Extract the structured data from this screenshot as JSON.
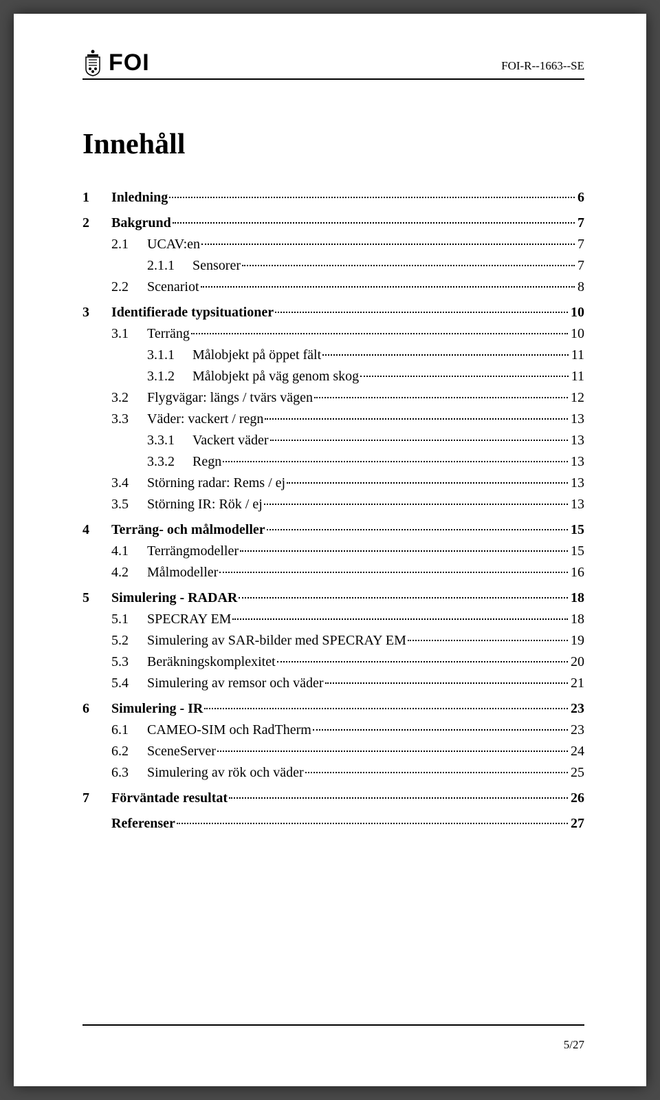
{
  "header": {
    "logo_text": "FOI",
    "report_id": "FOI-R--1663--SE"
  },
  "title": "Innehåll",
  "toc": [
    {
      "level": 1,
      "num": "1",
      "label": "Inledning",
      "page": "6"
    },
    {
      "level": 1,
      "num": "2",
      "label": "Bakgrund",
      "page": "7"
    },
    {
      "level": 2,
      "num": "2.1",
      "label": "UCAV:en",
      "page": "7"
    },
    {
      "level": 3,
      "num": "2.1.1",
      "label": "Sensorer",
      "page": "7"
    },
    {
      "level": 2,
      "num": "2.2",
      "label": "Scenariot",
      "page": "8"
    },
    {
      "level": 1,
      "num": "3",
      "label": "Identifierade typsituationer",
      "page": "10"
    },
    {
      "level": 2,
      "num": "3.1",
      "label": "Terräng",
      "page": "10"
    },
    {
      "level": 3,
      "num": "3.1.1",
      "label": "Målobjekt på öppet fält",
      "page": "11"
    },
    {
      "level": 3,
      "num": "3.1.2",
      "label": "Målobjekt på väg genom skog",
      "page": "11"
    },
    {
      "level": 2,
      "num": "3.2",
      "label": "Flygvägar: längs / tvärs vägen",
      "page": "12"
    },
    {
      "level": 2,
      "num": "3.3",
      "label": "Väder: vackert / regn",
      "page": "13"
    },
    {
      "level": 3,
      "num": "3.3.1",
      "label": "Vackert väder",
      "page": "13"
    },
    {
      "level": 3,
      "num": "3.3.2",
      "label": "Regn",
      "page": "13"
    },
    {
      "level": 2,
      "num": "3.4",
      "label": "Störning radar: Rems / ej",
      "page": "13"
    },
    {
      "level": 2,
      "num": "3.5",
      "label": "Störning IR: Rök / ej",
      "page": "13"
    },
    {
      "level": 1,
      "num": "4",
      "label": "Terräng- och målmodeller",
      "page": "15"
    },
    {
      "level": 2,
      "num": "4.1",
      "label": "Terrängmodeller",
      "page": "15"
    },
    {
      "level": 2,
      "num": "4.2",
      "label": "Målmodeller",
      "page": "16"
    },
    {
      "level": 1,
      "num": "5",
      "label": "Simulering - RADAR",
      "page": "18"
    },
    {
      "level": 2,
      "num": "5.1",
      "label": "SPECRAY EM",
      "page": "18"
    },
    {
      "level": 2,
      "num": "5.2",
      "label": "Simulering av SAR-bilder med SPECRAY EM",
      "page": "19"
    },
    {
      "level": 2,
      "num": "5.3",
      "label": "Beräkningskomplexitet",
      "page": "20"
    },
    {
      "level": 2,
      "num": "5.4",
      "label": "Simulering av remsor och väder",
      "page": "21"
    },
    {
      "level": 1,
      "num": "6",
      "label": "Simulering - IR",
      "page": "23"
    },
    {
      "level": 2,
      "num": "6.1",
      "label": "CAMEO-SIM och RadTherm",
      "page": "23"
    },
    {
      "level": 2,
      "num": "6.2",
      "label": "SceneServer",
      "page": "24"
    },
    {
      "level": 2,
      "num": "6.3",
      "label": "Simulering av rök och väder",
      "page": "25"
    },
    {
      "level": 1,
      "num": "7",
      "label": "Förväntade resultat",
      "page": "26"
    },
    {
      "level": 1,
      "num": "",
      "label": "Referenser",
      "page": "27"
    }
  ],
  "footer": {
    "page_label": "5/27"
  }
}
